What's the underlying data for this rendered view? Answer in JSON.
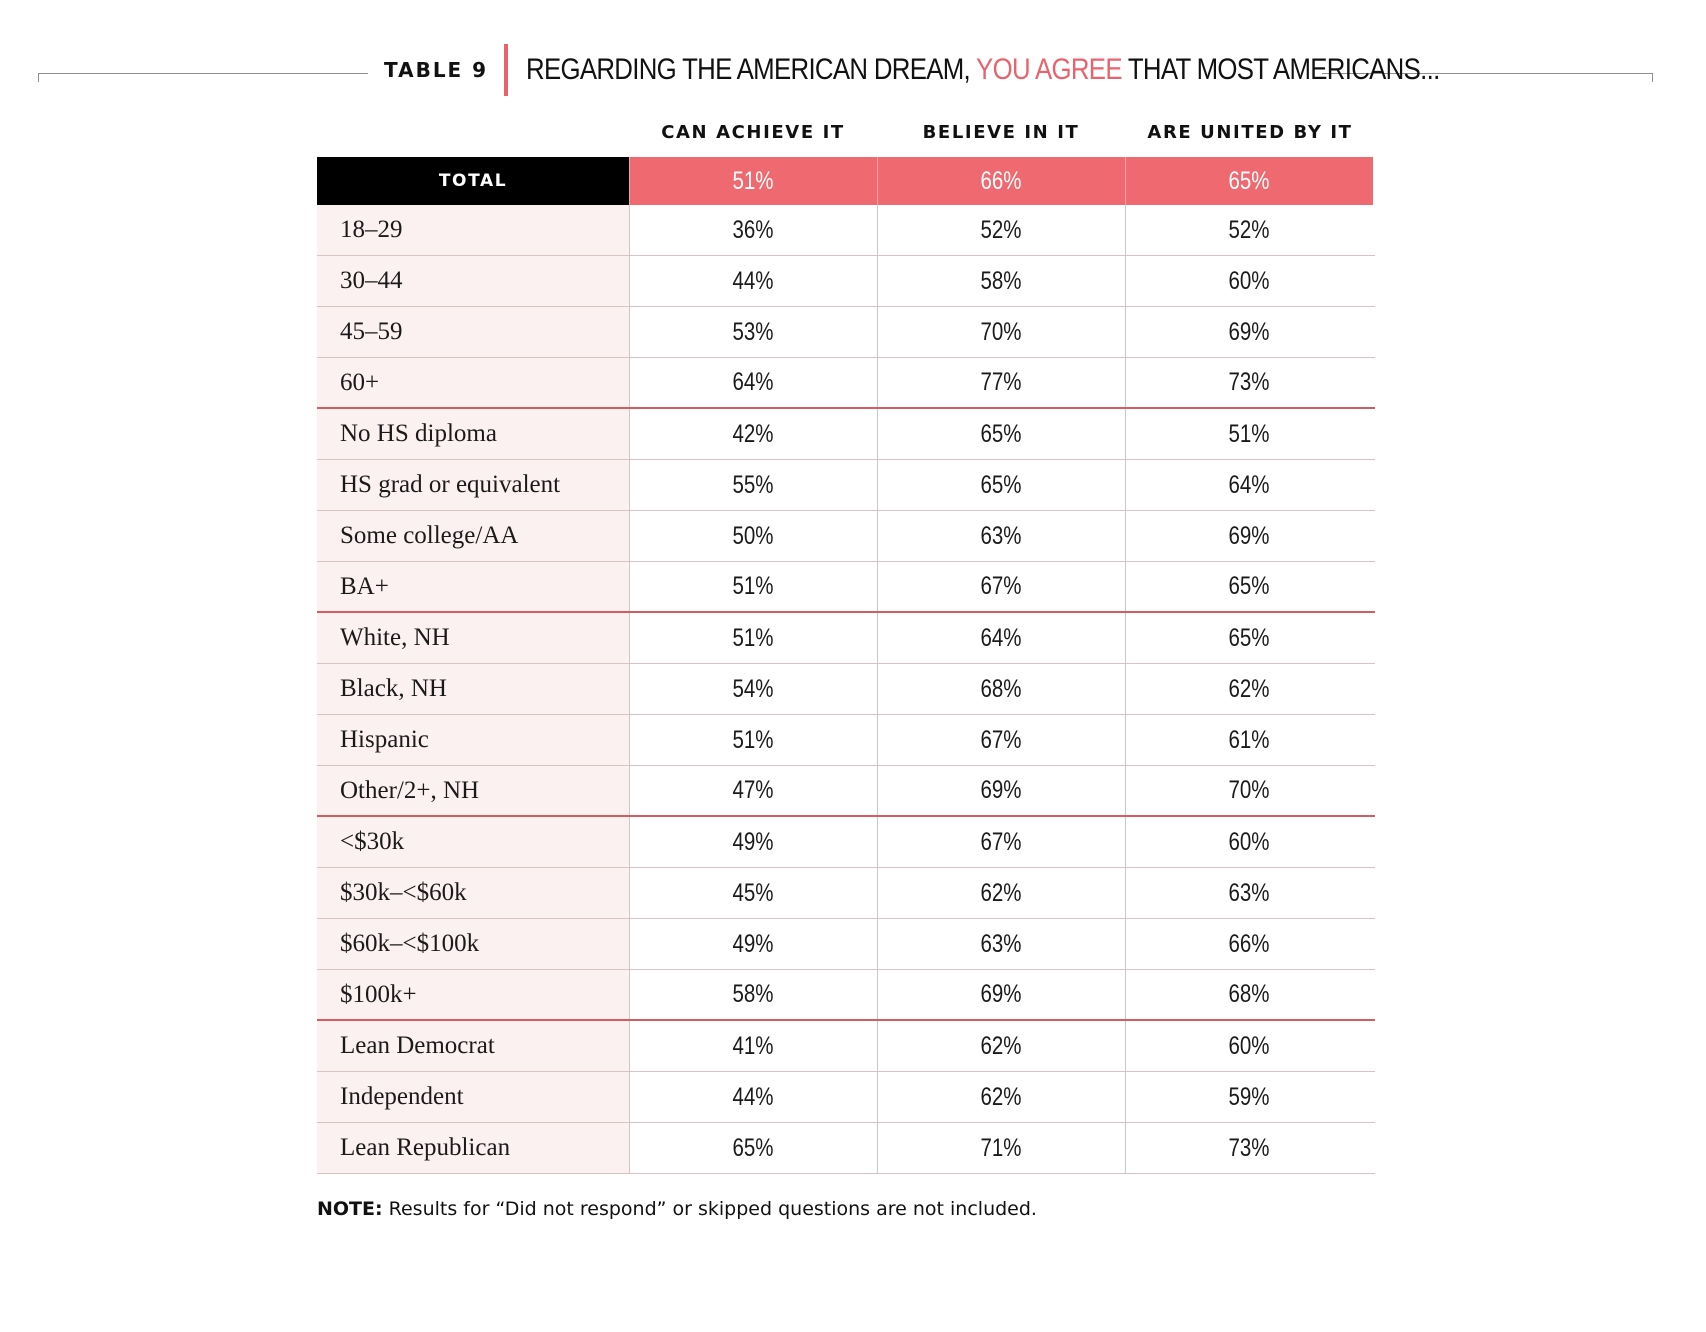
{
  "header": {
    "table_label": "TABLE 9",
    "title_prefix": "REGARDING THE AMERICAN DREAM, ",
    "title_highlight": "YOU AGREE",
    "title_suffix": " THAT MOST AMERICANS...",
    "highlight_color": "#e8636c"
  },
  "note": {
    "label": "NOTE:",
    "text": " Results for “Did not respond” or skipped questions are not included."
  },
  "colors": {
    "total_row_label_bg": "#000000",
    "total_row_values_bg": "#ef6a70",
    "label_column_bg": "#fcf1f1",
    "group_divider": "#d65c64"
  },
  "chart_data": {
    "type": "table",
    "title": "REGARDING THE AMERICAN DREAM, YOU AGREE THAT MOST AMERICANS...",
    "columns": [
      "CAN ACHIEVE IT",
      "BELIEVE IN IT",
      "ARE UNITED BY IT"
    ],
    "total": {
      "label": "TOTAL",
      "values": [
        "51%",
        "66%",
        "65%"
      ]
    },
    "groups": [
      {
        "rows": [
          {
            "label": "18–29",
            "values": [
              "36%",
              "52%",
              "52%"
            ]
          },
          {
            "label": "30–44",
            "values": [
              "44%",
              "58%",
              "60%"
            ]
          },
          {
            "label": "45–59",
            "values": [
              "53%",
              "70%",
              "69%"
            ]
          },
          {
            "label": "60+",
            "values": [
              "64%",
              "77%",
              "73%"
            ]
          }
        ]
      },
      {
        "rows": [
          {
            "label": "No HS diploma",
            "values": [
              "42%",
              "65%",
              "51%"
            ]
          },
          {
            "label": "HS grad or equivalent",
            "values": [
              "55%",
              "65%",
              "64%"
            ]
          },
          {
            "label": "Some college/AA",
            "values": [
              "50%",
              "63%",
              "69%"
            ]
          },
          {
            "label": "BA+",
            "values": [
              "51%",
              "67%",
              "65%"
            ]
          }
        ]
      },
      {
        "rows": [
          {
            "label": "White, NH",
            "values": [
              "51%",
              "64%",
              "65%"
            ]
          },
          {
            "label": "Black, NH",
            "values": [
              "54%",
              "68%",
              "62%"
            ]
          },
          {
            "label": "Hispanic",
            "values": [
              "51%",
              "67%",
              "61%"
            ]
          },
          {
            "label": "Other/2+, NH",
            "values": [
              "47%",
              "69%",
              "70%"
            ]
          }
        ]
      },
      {
        "rows": [
          {
            "label": "<$30k",
            "values": [
              "49%",
              "67%",
              "60%"
            ]
          },
          {
            "label": "$30k–<$60k",
            "values": [
              "45%",
              "62%",
              "63%"
            ]
          },
          {
            "label": "$60k–<$100k",
            "values": [
              "49%",
              "63%",
              "66%"
            ]
          },
          {
            "label": "$100k+",
            "values": [
              "58%",
              "69%",
              "68%"
            ]
          }
        ]
      },
      {
        "rows": [
          {
            "label": "Lean Democrat",
            "values": [
              "41%",
              "62%",
              "60%"
            ]
          },
          {
            "label": "Independent",
            "values": [
              "44%",
              "62%",
              "59%"
            ]
          },
          {
            "label": "Lean Republican",
            "values": [
              "65%",
              "71%",
              "73%"
            ]
          }
        ]
      }
    ]
  }
}
